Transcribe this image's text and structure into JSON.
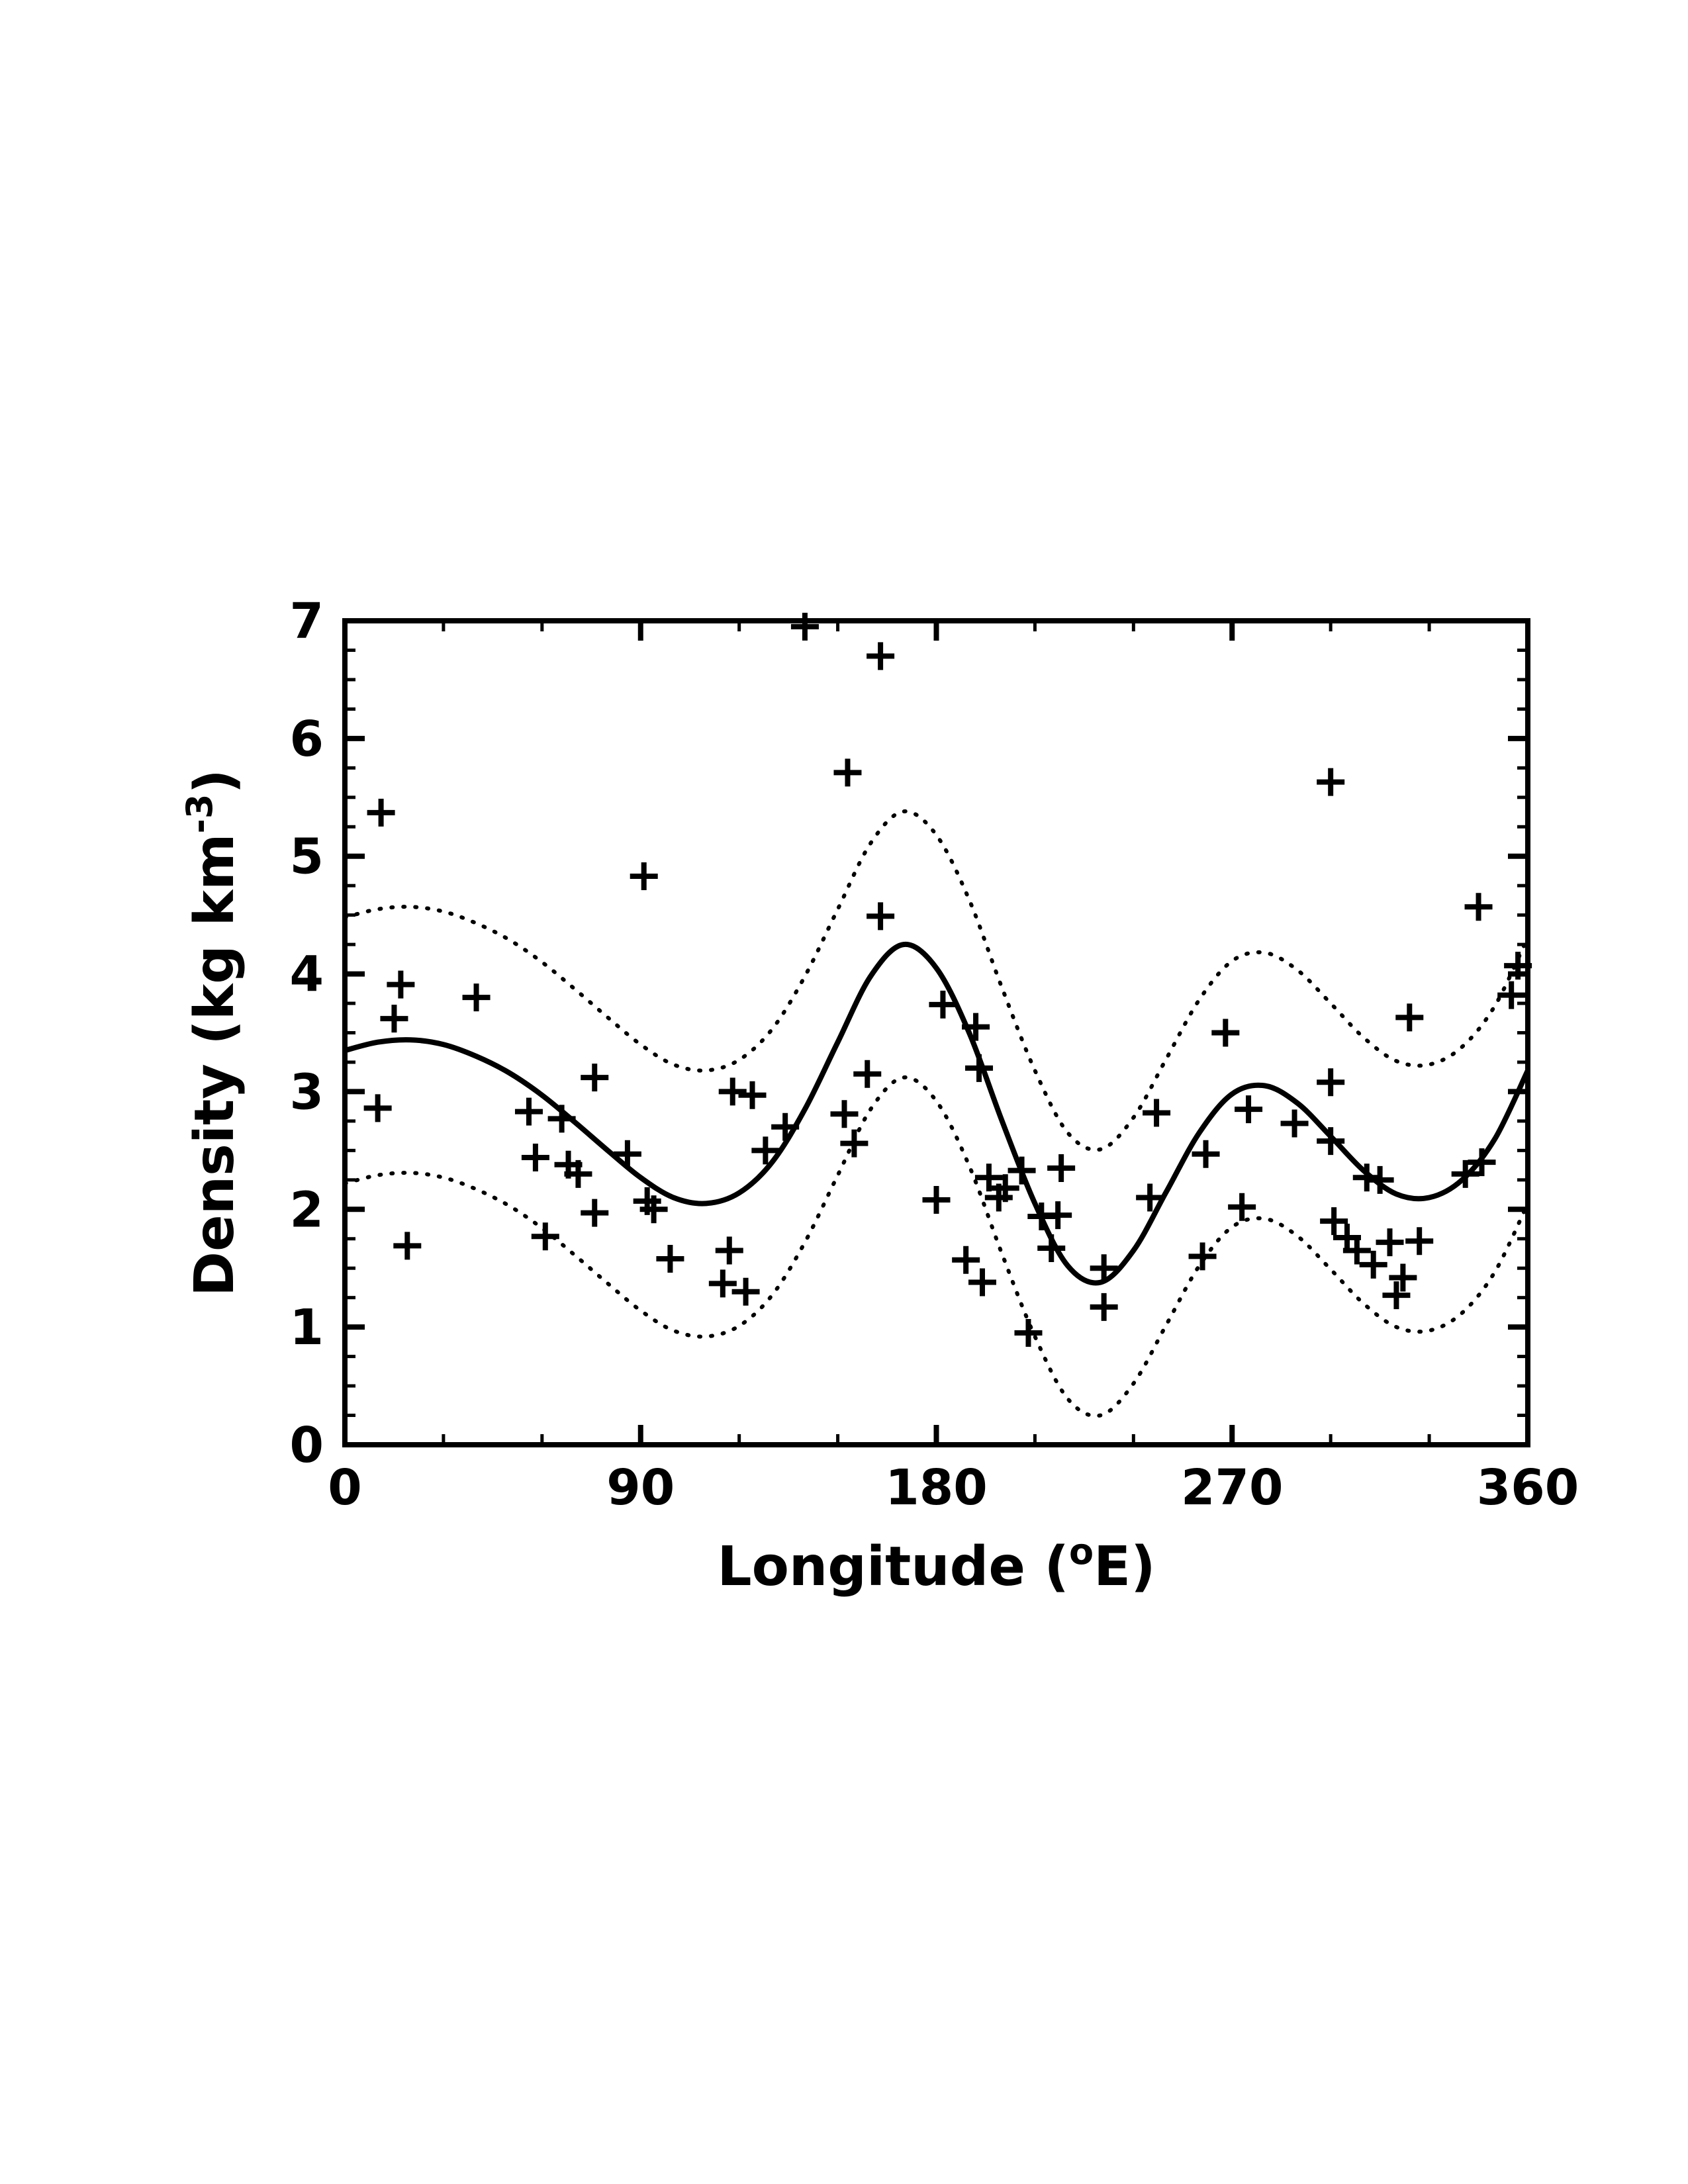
{
  "page": {
    "background": "#ffffff"
  },
  "chart_data": {
    "type": "scatter",
    "title": "",
    "xlabel": {
      "pre": "Longitude (",
      "sup": "o",
      "post": "E)"
    },
    "ylabel": {
      "pre": "Density (kg km",
      "sup": "-3",
      "post": ")"
    },
    "xlim": [
      0,
      360
    ],
    "ylim": [
      0,
      7
    ],
    "x_ticks": [
      0,
      90,
      180,
      270,
      360
    ],
    "y_ticks": [
      0,
      1,
      2,
      3,
      4,
      5,
      6,
      7
    ],
    "x_minor_step": 30,
    "y_minor_step": 0.25,
    "grid": false,
    "legend_position": "none",
    "colors": {
      "foreground": "#000000",
      "background": "#ffffff"
    },
    "scatter": {
      "marker": "plus",
      "points": [
        [
          11,
          5.37
        ],
        [
          15,
          3.62
        ],
        [
          17,
          3.91
        ],
        [
          10,
          2.86
        ],
        [
          19,
          1.69
        ],
        [
          40,
          3.8
        ],
        [
          56,
          2.83
        ],
        [
          58,
          2.44
        ],
        [
          61,
          1.77
        ],
        [
          66,
          2.77
        ],
        [
          68,
          2.38
        ],
        [
          71,
          2.3
        ],
        [
          76,
          3.12
        ],
        [
          76,
          1.97
        ],
        [
          86,
          2.47
        ],
        [
          91,
          4.83
        ],
        [
          92,
          2.07
        ],
        [
          94,
          2.0
        ],
        [
          99,
          1.58
        ],
        [
          115,
          1.37
        ],
        [
          117,
          1.65
        ],
        [
          118,
          3.0
        ],
        [
          122,
          1.3
        ],
        [
          124,
          2.97
        ],
        [
          128,
          2.5
        ],
        [
          134,
          2.7
        ],
        [
          140,
          6.95
        ],
        [
          152,
          2.81
        ],
        [
          153,
          5.71
        ],
        [
          155,
          2.56
        ],
        [
          159,
          3.15
        ],
        [
          163,
          6.7
        ],
        [
          163,
          4.49
        ],
        [
          180,
          2.08
        ],
        [
          182,
          3.74
        ],
        [
          189,
          1.57
        ],
        [
          192,
          3.55
        ],
        [
          193,
          3.2
        ],
        [
          194,
          1.38
        ],
        [
          196,
          2.27
        ],
        [
          199,
          2.1
        ],
        [
          201,
          2.18
        ],
        [
          206,
          2.33
        ],
        [
          208,
          0.95
        ],
        [
          212,
          1.94
        ],
        [
          215,
          1.67
        ],
        [
          217,
          1.95
        ],
        [
          218,
          2.35
        ],
        [
          231,
          1.5
        ],
        [
          231,
          1.17
        ],
        [
          245,
          2.1
        ],
        [
          247,
          2.82
        ],
        [
          261,
          1.6
        ],
        [
          262,
          2.47
        ],
        [
          268,
          3.5
        ],
        [
          273,
          2.02
        ],
        [
          275,
          2.85
        ],
        [
          289,
          2.73
        ],
        [
          300,
          5.63
        ],
        [
          300,
          3.08
        ],
        [
          300,
          2.58
        ],
        [
          301,
          1.9
        ],
        [
          305,
          1.76
        ],
        [
          308,
          1.65
        ],
        [
          311,
          2.27
        ],
        [
          313,
          1.53
        ],
        [
          315,
          2.25
        ],
        [
          318,
          1.72
        ],
        [
          320,
          1.27
        ],
        [
          322,
          1.42
        ],
        [
          324,
          3.63
        ],
        [
          327,
          1.73
        ],
        [
          341,
          2.3
        ],
        [
          345,
          4.57
        ],
        [
          346,
          2.4
        ],
        [
          355,
          3.82
        ],
        [
          357,
          4.07
        ]
      ]
    },
    "fit_line": {
      "style": "solid",
      "x_start": 0,
      "x_step": 10,
      "values": [
        3.35,
        3.42,
        3.44,
        3.4,
        3.3,
        3.16,
        2.97,
        2.74,
        2.5,
        2.27,
        2.1,
        2.05,
        2.14,
        2.4,
        2.85,
        3.42,
        3.98,
        4.25,
        4.05,
        3.5,
        2.75,
        2.05,
        1.52,
        1.38,
        1.65,
        2.15,
        2.65,
        2.98,
        3.05,
        2.9,
        2.62,
        2.33,
        2.13,
        2.1,
        2.25,
        2.6,
        3.18
      ]
    },
    "bands": {
      "style": "dotted",
      "upper": [
        4.48,
        4.55,
        4.57,
        4.53,
        4.43,
        4.29,
        4.1,
        3.87,
        3.63,
        3.4,
        3.23,
        3.18,
        3.27,
        3.53,
        3.98,
        4.55,
        5.11,
        5.38,
        5.18,
        4.63,
        3.88,
        3.18,
        2.65,
        2.51,
        2.78,
        3.28,
        3.78,
        4.11,
        4.18,
        4.03,
        3.75,
        3.46,
        3.26,
        3.23,
        3.38,
        3.73,
        4.31
      ],
      "lower": [
        2.22,
        2.29,
        2.31,
        2.27,
        2.17,
        2.03,
        1.84,
        1.61,
        1.37,
        1.14,
        0.97,
        0.92,
        1.01,
        1.27,
        1.72,
        2.29,
        2.85,
        3.12,
        2.92,
        2.37,
        1.62,
        0.92,
        0.39,
        0.25,
        0.52,
        1.02,
        1.52,
        1.85,
        1.92,
        1.77,
        1.49,
        1.2,
        1.0,
        0.97,
        1.12,
        1.47,
        2.05
      ]
    }
  }
}
